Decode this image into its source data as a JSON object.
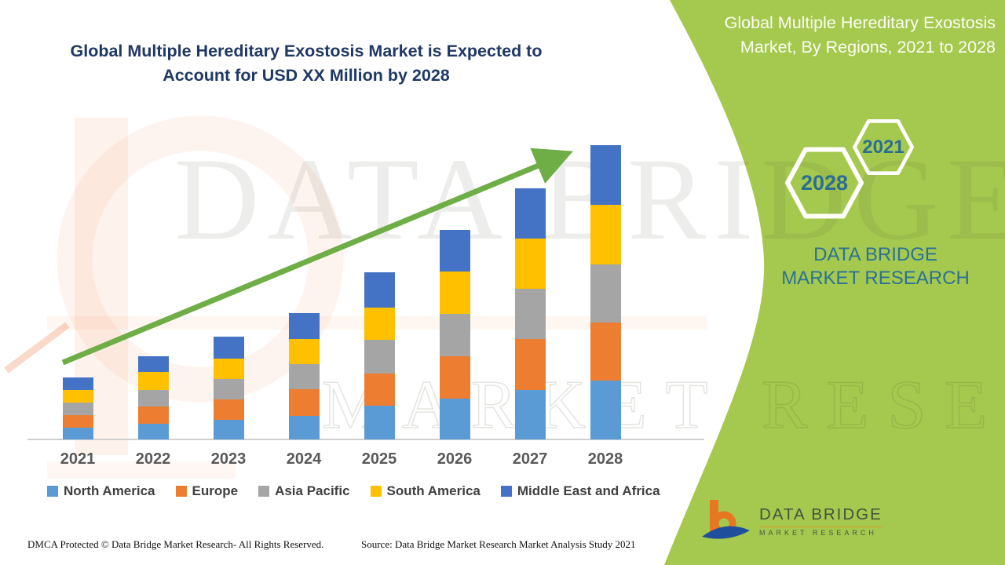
{
  "left_panel": {
    "title_line1": "Global Multiple Hereditary Exostosis Market is Expected to",
    "title_line2": "Account for USD XX Million by 2028"
  },
  "right_panel": {
    "title_line1": "Global Multiple Hereditary Exostosis",
    "title_line2": "Market, By Regions, 2021 to 2028",
    "hexagons": [
      {
        "year": "2021"
      },
      {
        "year": "2028"
      }
    ],
    "brand_text": "DATA BRIDGE MARKET RESEARCH",
    "logo": {
      "title": "DATA BRIDGE",
      "subtitle": "MARKET RESEARCH"
    }
  },
  "watermark": {
    "line1": "DATA BRIDGE",
    "line2": "MARKET RESEARCH"
  },
  "chart_data": {
    "type": "bar",
    "stacked": true,
    "title": "Global Multiple Hereditary Exostosis Market, By Regions, 2021 to 2028",
    "categories": [
      "2021",
      "2022",
      "2023",
      "2024",
      "2025",
      "2026",
      "2027",
      "2028"
    ],
    "series": [
      {
        "name": "North America",
        "color": "#5B9BD5",
        "values": [
          15,
          20,
          25,
          30,
          43,
          52,
          63,
          75
        ]
      },
      {
        "name": "Europe",
        "color": "#ED7D31",
        "values": [
          16,
          22,
          26,
          34,
          41,
          54,
          65,
          74
        ]
      },
      {
        "name": "Asia Pacific",
        "color": "#A5A5A5",
        "values": [
          16,
          21,
          26,
          32,
          43,
          54,
          64,
          74
        ]
      },
      {
        "name": "South America",
        "color": "#FFC000",
        "values": [
          16,
          23,
          26,
          32,
          41,
          54,
          64,
          76
        ]
      },
      {
        "name": "Middle East and Africa",
        "color": "#4472C4",
        "values": [
          16,
          20,
          28,
          33,
          45,
          53,
          64,
          76
        ]
      }
    ],
    "totals": [
      79,
      106,
      131,
      161,
      213,
      267,
      320,
      375
    ],
    "value_axis_labels": "none (values masked as USD XX Million)",
    "values_unit": "relative height",
    "legend_position": "bottom",
    "trend_arrow": true,
    "xlabel": "",
    "ylabel": ""
  },
  "footer": {
    "dmca": "DMCA Protected © Data Bridge Market Research- All Rights Reserved.",
    "source": "Source: Data Bridge Market Research Market Analysis Study 2021"
  },
  "colors": {
    "green_panel": "#A5C94E",
    "trend_arrow": "#6FAD47",
    "left_title": "#1F3864",
    "teal_text": "#2C7195",
    "axis_line": "#CFCFCF",
    "logo_orange": "#E87722",
    "logo_blue": "#1F4E9C"
  }
}
